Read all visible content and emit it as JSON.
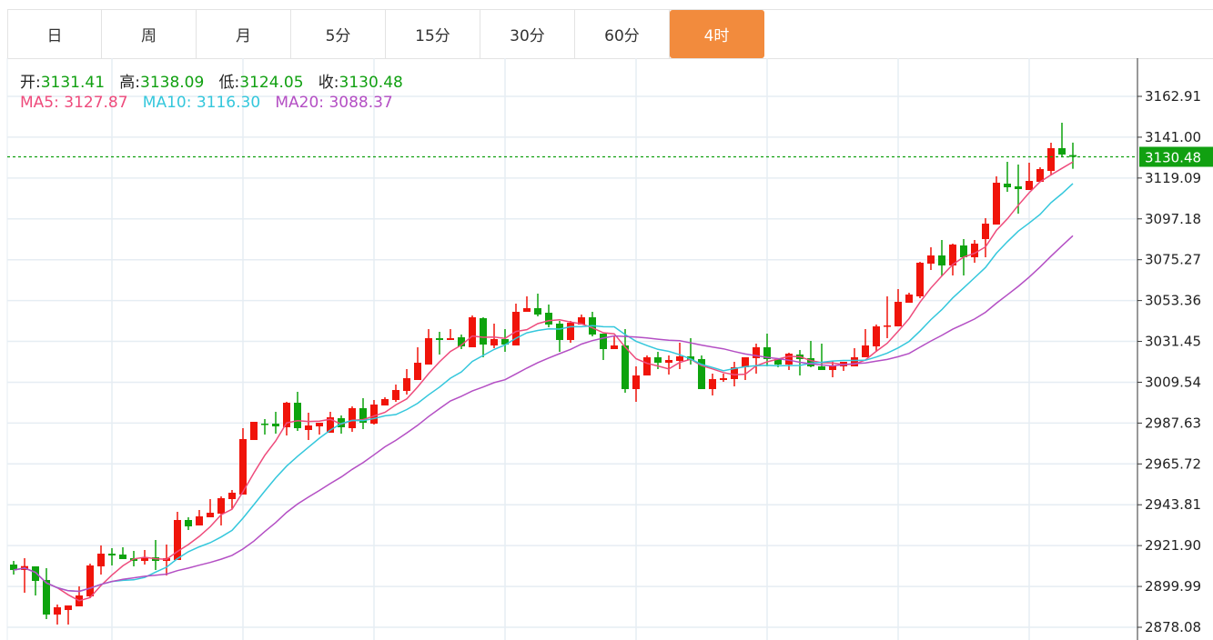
{
  "tabs": [
    {
      "label": "日",
      "active": false
    },
    {
      "label": "周",
      "active": false
    },
    {
      "label": "月",
      "active": false
    },
    {
      "label": "5分",
      "active": false
    },
    {
      "label": "15分",
      "active": false
    },
    {
      "label": "30分",
      "active": false
    },
    {
      "label": "60分",
      "active": false
    },
    {
      "label": "4时",
      "active": true
    }
  ],
  "ohlc": {
    "open_label": "开:",
    "open": "3131.41",
    "high_label": "高:",
    "high": "3138.09",
    "low_label": "低:",
    "low": "3124.05",
    "close_label": "收:",
    "close": "3130.48"
  },
  "ma": {
    "ma5_label": "MA5:",
    "ma5": "3127.87",
    "ma10_label": "MA10:",
    "ma10": "3116.30",
    "ma20_label": "MA20:",
    "ma20": "3088.37"
  },
  "colors": {
    "up": "#f0140a",
    "down": "#0ea30e",
    "ma5": "#ee4b7c",
    "ma10": "#34c7dc",
    "ma20": "#b44fc4",
    "accent": "#f28b3d",
    "last_price": "#11a011"
  },
  "chart_data": {
    "type": "candlestick",
    "ylim": [
      2878.08,
      3162.91
    ],
    "yticks": [
      "3162.91",
      "3141.00",
      "3119.09",
      "3097.18",
      "3075.27",
      "3053.36",
      "3031.45",
      "3009.54",
      "2987.63",
      "2965.72",
      "2943.81",
      "2921.90",
      "2899.99",
      "2878.08"
    ],
    "last_price": "3130.48",
    "grid": true,
    "moving_averages": [
      5,
      10,
      20
    ],
    "candles_ohlc": [
      [
        2911.73,
        2913.68,
        2906.36,
        2908.8
      ],
      [
        2908.8,
        2915.14,
        2896.61,
        2910.9
      ],
      [
        2910.75,
        2910.75,
        2895.15,
        2902.95
      ],
      [
        2903.44,
        2909.78,
        2882.47,
        2884.9
      ],
      [
        2884.9,
        2890.27,
        2879.54,
        2888.81
      ],
      [
        2887.34,
        2889.78,
        2879.54,
        2889.78
      ],
      [
        2889.29,
        2900.02,
        2889.29,
        2895.15
      ],
      [
        2894.66,
        2912.22,
        2893.68,
        2911.24
      ],
      [
        2910.75,
        2921.97,
        2906.36,
        2917.58
      ],
      [
        2917.58,
        2920.51,
        2911.24,
        2916.61
      ],
      [
        2917.09,
        2921.0,
        2914.66,
        2914.66
      ],
      [
        2915.14,
        2919.05,
        2910.75,
        2913.68
      ],
      [
        2913.68,
        2919.53,
        2911.73,
        2915.63
      ],
      [
        2915.63,
        2924.9,
        2908.8,
        2913.68
      ],
      [
        2913.68,
        2922.46,
        2905.88,
        2915.14
      ],
      [
        2914.17,
        2940.02,
        2914.17,
        2935.63
      ],
      [
        2935.63,
        2937.09,
        2930.26,
        2932.21
      ],
      [
        2932.7,
        2940.99,
        2932.7,
        2937.58
      ],
      [
        2937.09,
        2946.85,
        2937.09,
        2939.53
      ],
      [
        2939.04,
        2948.31,
        2932.7,
        2947.33
      ],
      [
        2946.85,
        2951.72,
        2941.48,
        2950.26
      ],
      [
        2949.28,
        2984.89,
        2949.28,
        2979.04
      ],
      [
        2978.55,
        2988.3,
        2978.55,
        2988.3
      ],
      [
        2987.33,
        2989.77,
        2981.48,
        2986.84
      ],
      [
        2987.33,
        2993.67,
        2981.96,
        2985.86
      ],
      [
        2985.38,
        2999.03,
        2980.99,
        2998.55
      ],
      [
        2998.55,
        3004.4,
        2983.43,
        2984.89
      ],
      [
        2983.91,
        2993.18,
        2978.55,
        2986.35
      ],
      [
        2985.86,
        2987.82,
        2981.48,
        2987.82
      ],
      [
        2982.45,
        2993.67,
        2982.45,
        2990.74
      ],
      [
        2990.25,
        2991.72,
        2981.96,
        2985.38
      ],
      [
        2984.89,
        2996.59,
        2982.94,
        2995.62
      ],
      [
        2995.62,
        3000.98,
        2984.4,
        2987.82
      ],
      [
        2987.33,
        3000.01,
        2986.84,
        2997.57
      ],
      [
        2997.08,
        3001.47,
        2997.08,
        3000.5
      ],
      [
        3000.01,
        3008.3,
        2999.03,
        3005.37
      ],
      [
        3004.89,
        3016.59,
        3002.94,
        3011.71
      ],
      [
        3010.74,
        3028.3,
        3010.74,
        3020.01
      ],
      [
        3019.03,
        3038.05,
        3019.03,
        3033.17
      ],
      [
        3033.17,
        3036.59,
        3024.4,
        3032.2
      ],
      [
        3032.2,
        3038.05,
        3032.2,
        3033.17
      ],
      [
        3033.66,
        3035.13,
        3027.32,
        3028.78
      ],
      [
        3028.3,
        3045.37,
        3028.3,
        3044.39
      ],
      [
        3043.9,
        3044.39,
        3022.93,
        3029.76
      ],
      [
        3029.27,
        3040.98,
        3027.81,
        3032.69
      ],
      [
        3032.69,
        3038.05,
        3025.86,
        3029.76
      ],
      [
        3029.27,
        3051.71,
        3029.27,
        3047.32
      ],
      [
        3047.32,
        3055.61,
        3047.32,
        3049.27
      ],
      [
        3049.27,
        3057.07,
        3044.88,
        3045.86
      ],
      [
        3046.83,
        3051.22,
        3039.03,
        3040.49
      ],
      [
        3040.98,
        3042.44,
        3025.86,
        3032.2
      ],
      [
        3032.2,
        3042.44,
        3030.74,
        3041.47
      ],
      [
        3040.49,
        3045.86,
        3040.49,
        3044.39
      ],
      [
        3044.39,
        3047.32,
        3034.15,
        3035.13
      ],
      [
        3035.61,
        3035.61,
        3021.47,
        3027.32
      ],
      [
        3027.32,
        3034.15,
        3027.32,
        3029.27
      ],
      [
        3029.27,
        3038.05,
        3003.91,
        3005.86
      ],
      [
        3005.86,
        3018.05,
        2999.03,
        3013.18
      ],
      [
        3013.18,
        3023.91,
        3013.18,
        3022.93
      ],
      [
        3022.93,
        3025.86,
        3016.59,
        3020.01
      ],
      [
        3020.01,
        3023.91,
        3013.67,
        3021.47
      ],
      [
        3020.98,
        3030.74,
        3016.59,
        3023.42
      ],
      [
        3023.42,
        3033.17,
        3019.03,
        3021.47
      ],
      [
        3021.96,
        3023.91,
        3005.86,
        3005.86
      ],
      [
        3005.86,
        3014.15,
        3002.45,
        3011.23
      ],
      [
        3010.74,
        3014.15,
        3009.76,
        3011.71
      ],
      [
        3011.23,
        3020.49,
        3007.32,
        3017.57
      ],
      [
        3017.57,
        3022.93,
        3010.74,
        3022.93
      ],
      [
        3022.44,
        3030.25,
        3014.15,
        3028.3
      ],
      [
        3028.3,
        3035.61,
        3018.05,
        3021.96
      ],
      [
        3021.96,
        3021.96,
        3017.57,
        3019.03
      ],
      [
        3019.03,
        3025.37,
        3016.1,
        3024.88
      ],
      [
        3024.4,
        3026.83,
        3013.18,
        3021.96
      ],
      [
        3022.44,
        3031.71,
        3017.57,
        3018.05
      ],
      [
        3018.05,
        3030.25,
        3016.1,
        3016.1
      ],
      [
        3016.1,
        3020.98,
        3012.2,
        3018.54
      ],
      [
        3018.05,
        3020.49,
        3015.62,
        3020.49
      ],
      [
        3018.05,
        3027.81,
        3018.05,
        3022.93
      ],
      [
        3022.93,
        3038.05,
        3022.93,
        3029.27
      ],
      [
        3028.78,
        3040.49,
        3025.86,
        3039.51
      ],
      [
        3039.51,
        3055.61,
        3033.17,
        3040.0
      ],
      [
        3039.51,
        3059.51,
        3039.51,
        3052.68
      ],
      [
        3052.2,
        3057.56,
        3052.2,
        3056.59
      ],
      [
        3055.61,
        3074.14,
        3054.63,
        3073.66
      ],
      [
        3073.17,
        3081.95,
        3069.75,
        3077.56
      ],
      [
        3077.56,
        3085.85,
        3066.34,
        3072.19
      ],
      [
        3072.19,
        3083.9,
        3066.83,
        3083.41
      ],
      [
        3082.92,
        3086.34,
        3066.83,
        3076.58
      ],
      [
        3076.58,
        3085.85,
        3073.66,
        3083.9
      ],
      [
        3086.34,
        3097.55,
        3076.58,
        3094.63
      ],
      [
        3094.14,
        3119.99,
        3094.14,
        3116.58
      ],
      [
        3116.09,
        3127.79,
        3111.7,
        3114.14
      ],
      [
        3114.63,
        3126.33,
        3099.99,
        3113.16
      ],
      [
        3112.67,
        3127.31,
        3112.67,
        3117.55
      ],
      [
        3117.06,
        3124.87,
        3117.06,
        3123.89
      ],
      [
        3122.92,
        3138.04,
        3120.48,
        3135.11
      ],
      [
        3135.11,
        3148.77,
        3130.23,
        3131.7
      ],
      [
        3131.41,
        3138.09,
        3124.05,
        3130.48
      ]
    ]
  }
}
